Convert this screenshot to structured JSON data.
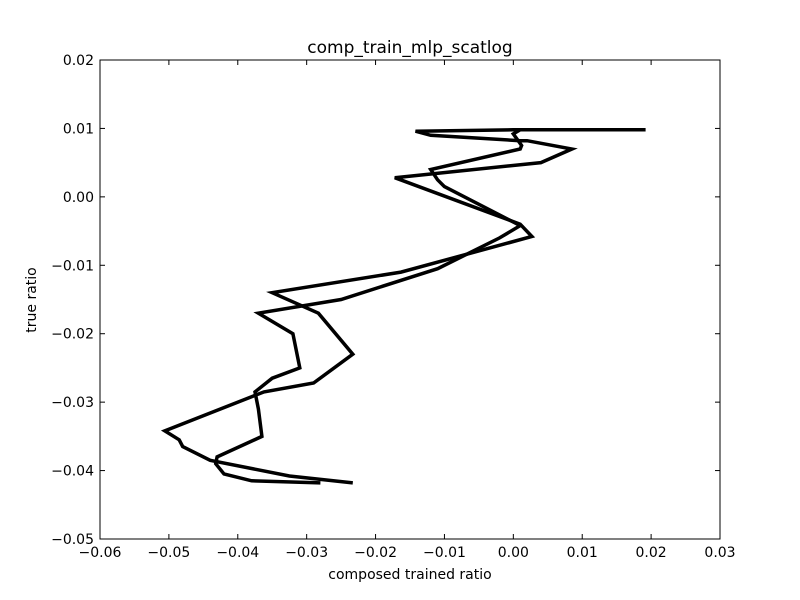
{
  "chart_data": {
    "type": "line",
    "title": "comp_train_mlp_scatlog",
    "xlabel": "composed trained ratio",
    "ylabel": "true ratio",
    "xlim": [
      -0.06,
      0.03
    ],
    "ylim": [
      -0.05,
      0.02
    ],
    "xticks": [
      -0.06,
      -0.05,
      -0.04,
      -0.03,
      -0.02,
      -0.01,
      0.0,
      0.01,
      0.02,
      0.03
    ],
    "xtick_labels": [
      "−0.06",
      "−0.05",
      "−0.04",
      "−0.03",
      "−0.02",
      "−0.01",
      "0.00",
      "0.01",
      "0.02",
      "0.03"
    ],
    "yticks": [
      0.02,
      0.01,
      0.0,
      -0.01,
      -0.02,
      -0.03,
      -0.04,
      -0.05
    ],
    "ytick_labels": [
      "0.02",
      "0.01",
      "0.00",
      "−0.01",
      "−0.02",
      "−0.03",
      "−0.04",
      "−0.05"
    ],
    "grid": false,
    "legend": "none",
    "line_color": "#000000",
    "series": [
      {
        "x": [
          0.0192,
          0.0,
          -0.0142,
          -0.012,
          0.001,
          0.002,
          0.0085,
          0.004,
          -0.0172,
          0.001,
          0.0027,
          -0.0163,
          -0.035,
          -0.0283,
          -0.0233,
          -0.029,
          -0.0362,
          -0.038,
          -0.0506,
          -0.0485,
          -0.048,
          -0.044,
          -0.0325,
          -0.0233
        ],
        "y": [
          0.0098,
          0.0098,
          0.0096,
          0.009,
          0.0082,
          0.0082,
          0.007,
          0.005,
          0.0028,
          -0.004,
          -0.0058,
          -0.011,
          -0.014,
          -0.017,
          -0.023,
          -0.0272,
          -0.0285,
          -0.0292,
          -0.0342,
          -0.0355,
          -0.0365,
          -0.0385,
          -0.0408,
          -0.0418
        ]
      },
      {
        "x": [
          0.001,
          0.0,
          0.0012,
          0.001,
          -0.012,
          -0.011,
          -0.01,
          0.001,
          -0.002,
          -0.011,
          -0.025,
          -0.037,
          -0.032,
          -0.031,
          -0.035,
          -0.0375,
          -0.037,
          -0.0365,
          -0.043,
          -0.0432,
          -0.042,
          -0.038,
          -0.028
        ],
        "y": [
          0.0098,
          0.0092,
          0.0075,
          0.007,
          0.004,
          0.0025,
          0.0015,
          -0.0042,
          -0.006,
          -0.0105,
          -0.015,
          -0.017,
          -0.02,
          -0.025,
          -0.0265,
          -0.0285,
          -0.031,
          -0.035,
          -0.038,
          -0.039,
          -0.0405,
          -0.0415,
          -0.0418
        ]
      }
    ]
  }
}
